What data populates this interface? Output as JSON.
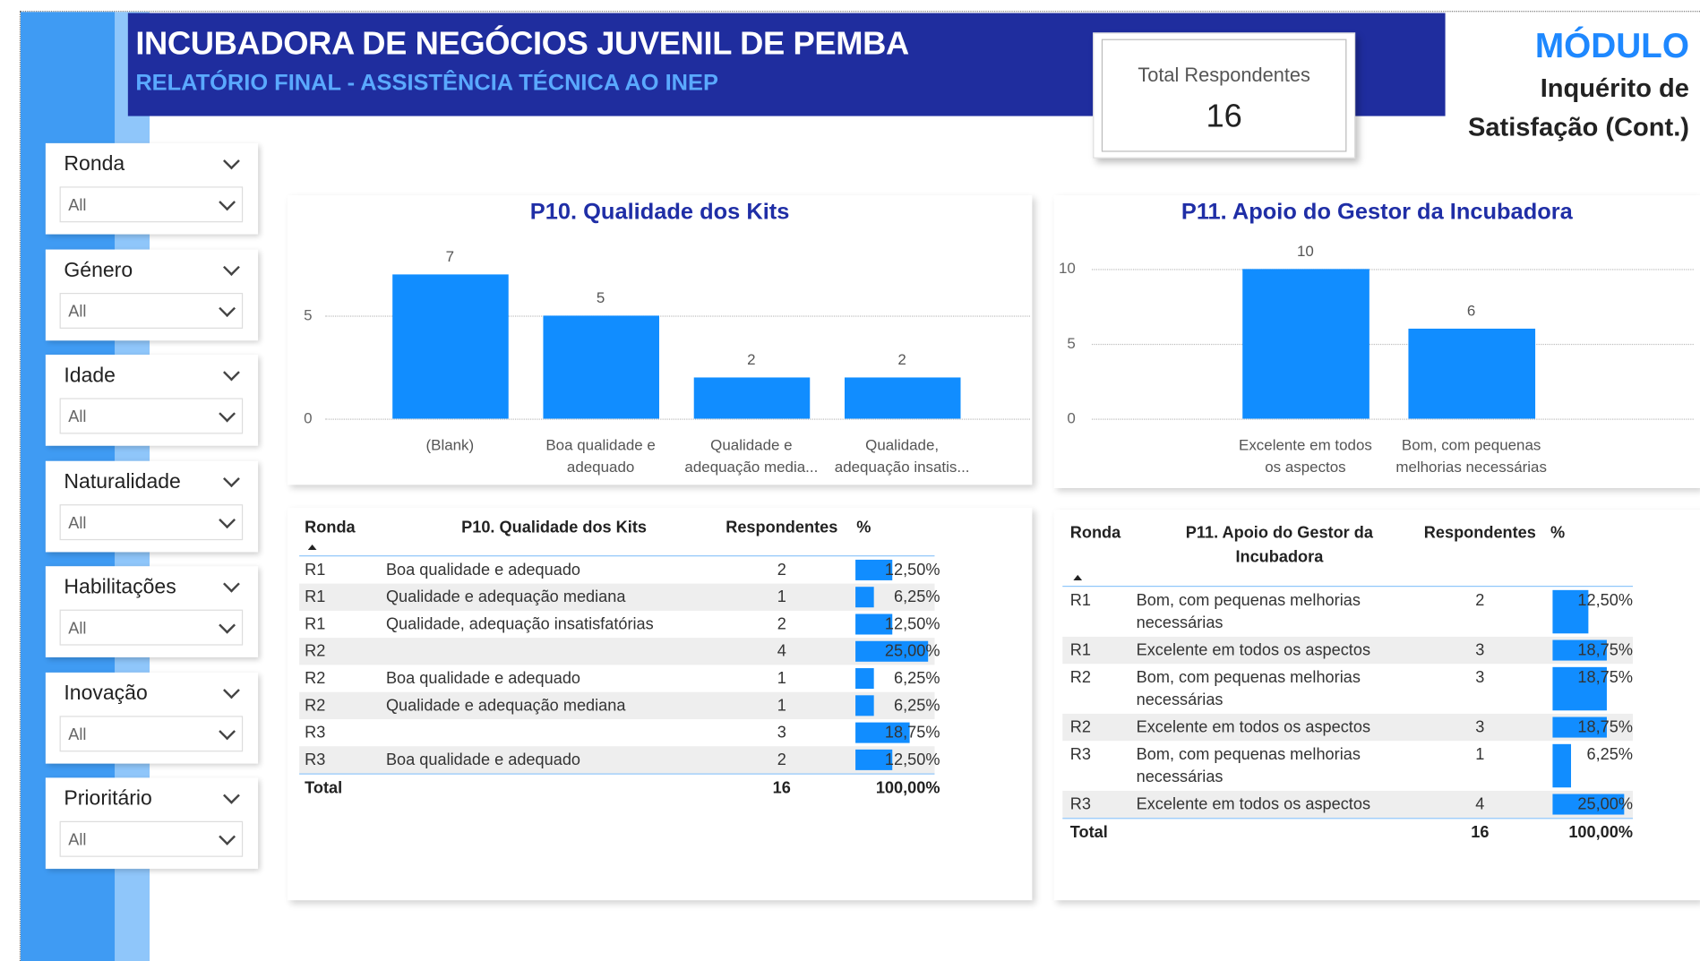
{
  "header": {
    "title": "INCUBADORA DE NEGÓCIOS JUVENIL DE PEMBA",
    "subtitle": "RELATÓRIO FINAL - ASSISTÊNCIA TÉCNICA AO INEP",
    "module": "MÓDULO",
    "module_subtitle": "Inquérito de Satisfação (Cont.)"
  },
  "card": {
    "label": "Total Respondentes",
    "value": 16
  },
  "slicers": [
    {
      "label": "Ronda",
      "value": "All"
    },
    {
      "label": "Género",
      "value": "All"
    },
    {
      "label": "Idade",
      "value": "All"
    },
    {
      "label": "Naturalidade",
      "value": "All"
    },
    {
      "label": "Habilitações",
      "value": "All"
    },
    {
      "label": "Inovação",
      "value": "All"
    },
    {
      "label": "Prioritário",
      "value": "All"
    }
  ],
  "chart_data": [
    {
      "type": "bar",
      "title": "P10. Qualidade dos Kits",
      "categories": [
        "(Blank)",
        "Boa qualidade e adequado",
        "Qualidade e adequação media...",
        "Qualidade, adequação insatis..."
      ],
      "values": [
        7,
        5,
        2,
        2
      ],
      "color": "#118dff",
      "ylim": [
        0,
        8
      ],
      "yticks": [
        0,
        5
      ],
      "grid": true
    },
    {
      "type": "bar",
      "title": "P11. Apoio do Gestor da Incubadora",
      "categories": [
        "Excelente em todos os aspectos",
        "Bom, com pequenas melhorias necessárias"
      ],
      "values": [
        10,
        6
      ],
      "color": "#118dff",
      "ylim": [
        0,
        11
      ],
      "yticks": [
        0,
        5,
        10
      ],
      "grid": true
    }
  ],
  "tables": [
    {
      "columns": [
        "Ronda",
        "P10. Qualidade dos Kits",
        "Respondentes",
        "%"
      ],
      "rows": [
        [
          "R1",
          "Boa qualidade e adequado",
          2,
          "12,50%"
        ],
        [
          "R1",
          "Qualidade e adequação mediana",
          1,
          "6,25%"
        ],
        [
          "R1",
          "Qualidade, adequação insatisfatórias",
          2,
          "12,50%"
        ],
        [
          "R2",
          null,
          4,
          "25,00%"
        ],
        [
          "R2",
          "Boa qualidade e adequado",
          1,
          "6,25%"
        ],
        [
          "R2",
          "Qualidade e adequação mediana",
          1,
          "6,25%"
        ],
        [
          "R3",
          null,
          3,
          "18,75%"
        ],
        [
          "R3",
          "Boa qualidade e adequado",
          2,
          "12,50%"
        ]
      ],
      "total": {
        "label": "Total",
        "respondentes": 16,
        "percent": "100,00%"
      }
    },
    {
      "columns": [
        "Ronda",
        "P11. Apoio do Gestor da Incubadora",
        "Respondentes",
        "%"
      ],
      "rows": [
        [
          "R1",
          "Bom, com pequenas melhorias necessárias",
          2,
          "12,50%"
        ],
        [
          "R1",
          "Excelente em todos os aspectos",
          3,
          "18,75%"
        ],
        [
          "R2",
          "Bom, com pequenas melhorias necessárias",
          3,
          "18,75%"
        ],
        [
          "R2",
          "Excelente em todos os aspectos",
          3,
          "18,75%"
        ],
        [
          "R3",
          "Bom, com pequenas melhorias necessárias",
          1,
          "6,25%"
        ],
        [
          "R3",
          "Excelente em todos os aspectos",
          4,
          "25,00%"
        ]
      ],
      "total": {
        "label": "Total",
        "respondentes": 16,
        "percent": "100,00%"
      }
    }
  ]
}
